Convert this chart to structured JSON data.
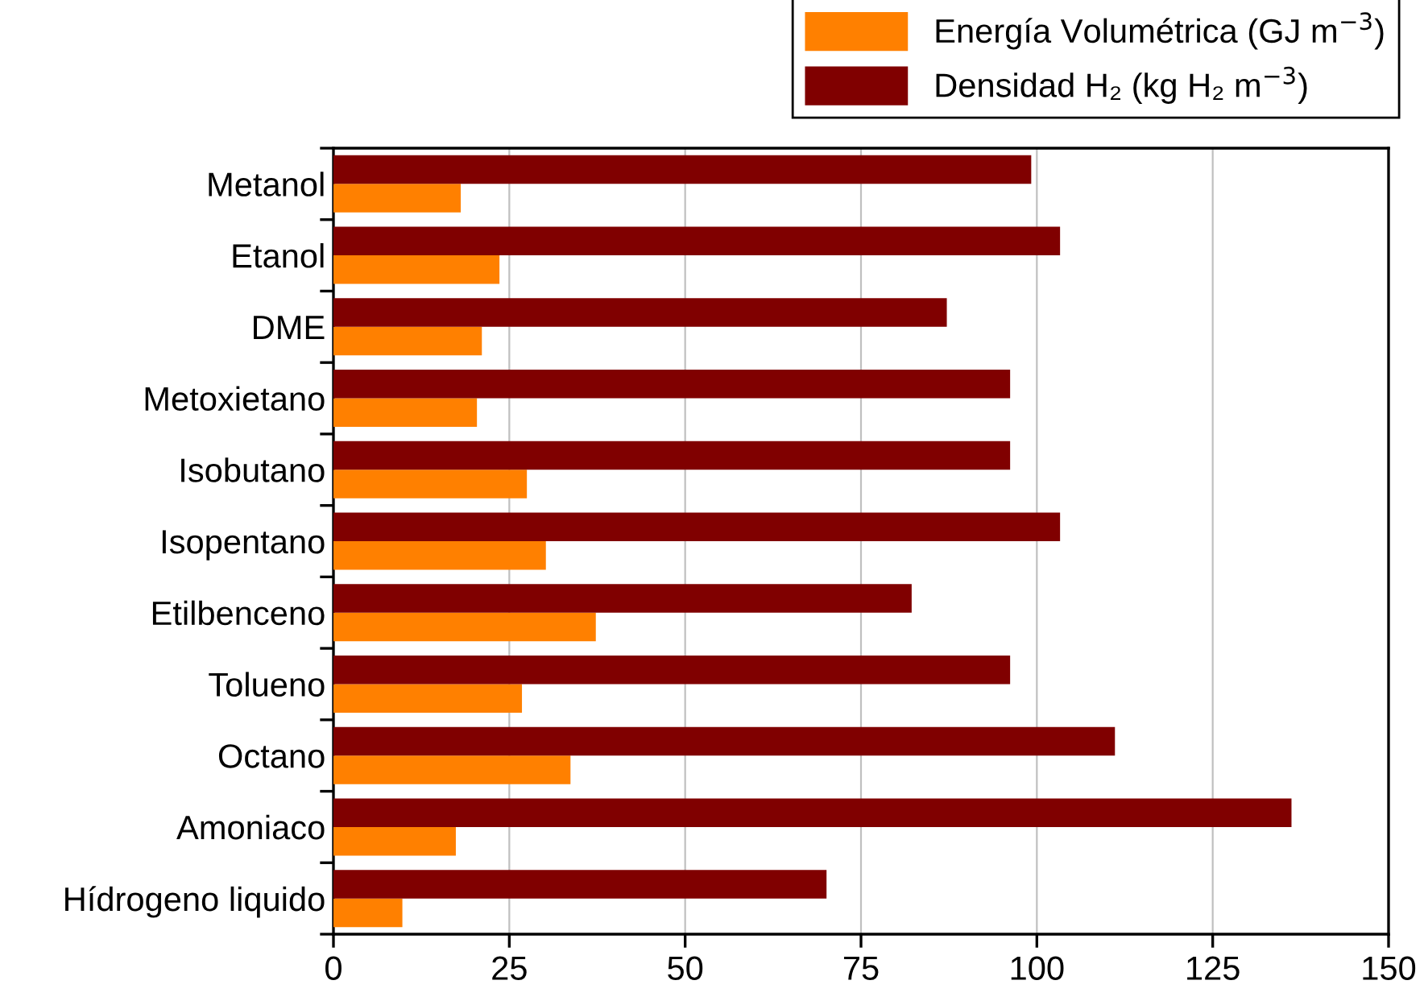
{
  "chart_data": {
    "type": "bar",
    "orientation": "horizontal",
    "categories": [
      "Metanol",
      "Etanol",
      "DME",
      "Metoxietano",
      "Isobutano",
      "Isopentano",
      "Etilbenceno",
      "Tolueno",
      "Octano",
      "Amoniaco",
      "Hídrogeno liquido"
    ],
    "series": [
      {
        "name": "Energía Volumétrica (GJ m$^{−3}$)",
        "color": "#ff8000",
        "values": [
          18.1,
          23.6,
          21.1,
          20.4,
          27.5,
          30.2,
          37.3,
          26.8,
          33.7,
          17.4,
          9.8
        ]
      },
      {
        "name": "Densidad H₂ (kg H₂ m$^{−3}$)",
        "color": "#800000",
        "values": [
          99.2,
          103.3,
          87.2,
          96.2,
          96.2,
          103.3,
          82.2,
          96.2,
          111.1,
          136.2,
          70.1
        ]
      }
    ],
    "xlim": [
      0,
      150
    ],
    "xticks": [
      0,
      25,
      50,
      75,
      100,
      125,
      150
    ],
    "grid": "x",
    "legend": "top right"
  }
}
